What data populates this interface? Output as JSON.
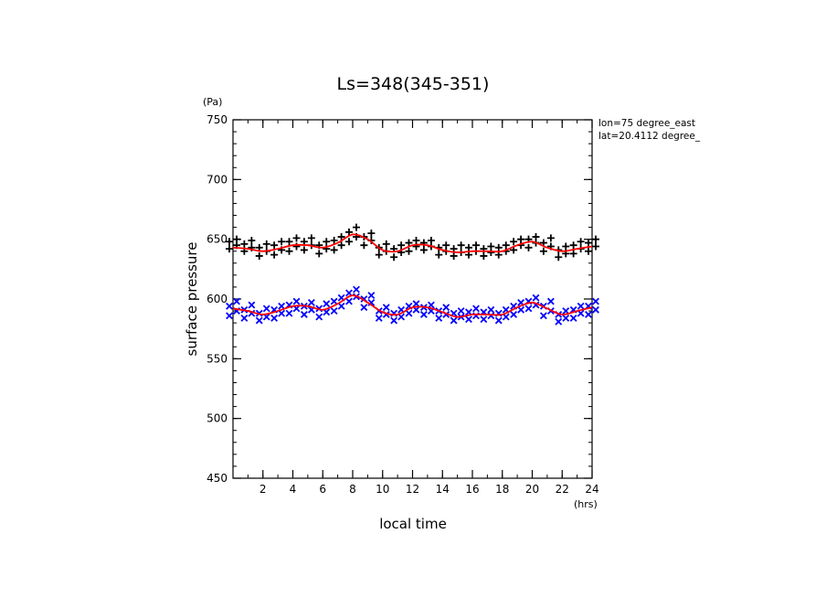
{
  "chart_data": {
    "type": "scatter",
    "title": "Ls=348(345-351)",
    "xlabel": "local time",
    "ylabel": "surface pressure",
    "x_unit": "(hrs)",
    "y_unit": "(Pa)",
    "xlim": [
      0,
      24
    ],
    "ylim": [
      450,
      750
    ],
    "x_ticks": [
      2,
      4,
      6,
      8,
      10,
      12,
      14,
      16,
      18,
      20,
      22,
      24
    ],
    "y_ticks": [
      450,
      500,
      550,
      600,
      650,
      700,
      750
    ],
    "grid": false,
    "annotations": [
      "lon=75 degree_east",
      "lat=20.4112 degree_"
    ],
    "series": [
      {
        "marker": "plus",
        "color": "#000000",
        "fit_color": "#ff0000",
        "x": [
          0,
          1,
          2,
          3,
          4,
          5,
          6,
          7,
          8,
          9,
          10,
          11,
          12,
          13,
          14,
          15,
          16,
          17,
          18,
          19,
          20,
          21,
          22,
          23,
          24
        ],
        "values": [
          [
            642,
            645,
            648,
            650
          ],
          [
            640,
            643,
            646,
            649
          ],
          [
            636,
            640,
            643,
            646
          ],
          [
            637,
            641,
            645,
            648
          ],
          [
            640,
            644,
            648,
            651
          ],
          [
            641,
            645,
            648,
            651
          ],
          [
            638,
            642,
            645,
            648
          ],
          [
            641,
            645,
            649,
            652
          ],
          [
            648,
            652,
            656,
            660
          ],
          [
            645,
            649,
            652,
            655
          ],
          [
            637,
            640,
            643,
            646
          ],
          [
            635,
            639,
            642,
            645
          ],
          [
            640,
            644,
            647,
            649
          ],
          [
            641,
            644,
            647,
            649
          ],
          [
            637,
            640,
            643,
            645
          ],
          [
            636,
            639,
            642,
            645
          ],
          [
            637,
            640,
            643,
            645
          ],
          [
            636,
            639,
            642,
            644
          ],
          [
            637,
            640,
            643,
            645
          ],
          [
            641,
            645,
            648,
            650
          ],
          [
            643,
            647,
            650,
            652
          ],
          [
            640,
            644,
            647,
            651
          ],
          [
            635,
            638,
            641,
            644
          ],
          [
            638,
            642,
            645,
            648
          ],
          [
            640,
            644,
            647,
            650
          ]
        ],
        "fit": [
          643,
          642,
          640,
          642,
          645,
          645,
          643,
          647,
          654,
          650,
          641,
          640,
          645,
          645,
          641,
          639,
          640,
          640,
          640,
          645,
          648,
          643,
          640,
          642,
          644
        ]
      },
      {
        "marker": "cross",
        "color": "#0000ff",
        "fit_color": "#ff0000",
        "x": [
          0,
          1,
          2,
          3,
          4,
          5,
          6,
          7,
          8,
          9,
          10,
          11,
          12,
          13,
          14,
          15,
          16,
          17,
          18,
          19,
          20,
          21,
          22,
          23,
          24
        ],
        "values": [
          [
            586,
            590,
            594,
            598
          ],
          [
            584,
            588,
            591,
            595
          ],
          [
            582,
            585,
            588,
            592
          ],
          [
            584,
            588,
            591,
            594
          ],
          [
            588,
            592,
            595,
            598
          ],
          [
            587,
            591,
            594,
            597
          ],
          [
            585,
            589,
            592,
            596
          ],
          [
            590,
            594,
            598,
            601
          ],
          [
            598,
            602,
            605,
            608
          ],
          [
            593,
            597,
            600,
            603
          ],
          [
            584,
            587,
            590,
            593
          ],
          [
            582,
            585,
            588,
            591
          ],
          [
            588,
            591,
            594,
            596
          ],
          [
            587,
            590,
            593,
            595
          ],
          [
            584,
            587,
            590,
            593
          ],
          [
            582,
            585,
            588,
            590
          ],
          [
            583,
            586,
            589,
            592
          ],
          [
            583,
            586,
            589,
            591
          ],
          [
            582,
            585,
            588,
            591
          ],
          [
            587,
            591,
            594,
            597
          ],
          [
            592,
            595,
            598,
            601
          ],
          [
            586,
            590,
            594,
            598
          ],
          [
            581,
            584,
            587,
            590
          ],
          [
            584,
            588,
            591,
            594
          ],
          [
            587,
            591,
            594,
            598
          ]
        ],
        "fit": [
          592,
          590,
          587,
          590,
          594,
          594,
          591,
          596,
          603,
          597,
          589,
          587,
          593,
          593,
          589,
          585,
          587,
          587,
          587,
          593,
          597,
          592,
          587,
          590,
          593
        ]
      }
    ]
  }
}
